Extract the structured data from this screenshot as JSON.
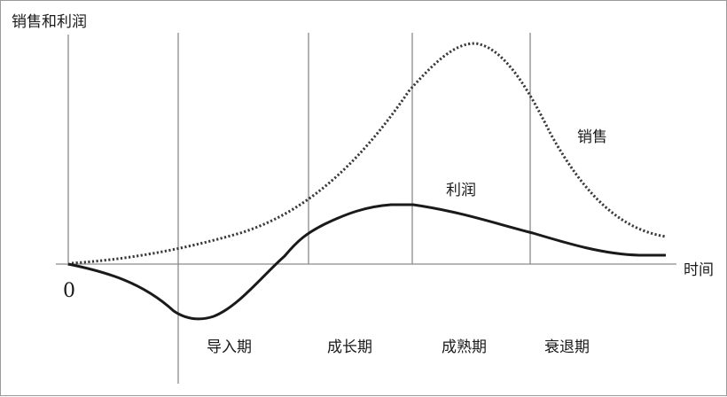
{
  "chart_data": {
    "type": "line",
    "ylabel": "销售和利润",
    "xlabel": "时间",
    "origin_label": "0",
    "stages": [
      "导入期",
      "成长期",
      "成熟期",
      "衰退期"
    ],
    "series": [
      {
        "name": "销售",
        "style": "dotted"
      },
      {
        "name": "利润",
        "style": "solid"
      }
    ]
  }
}
